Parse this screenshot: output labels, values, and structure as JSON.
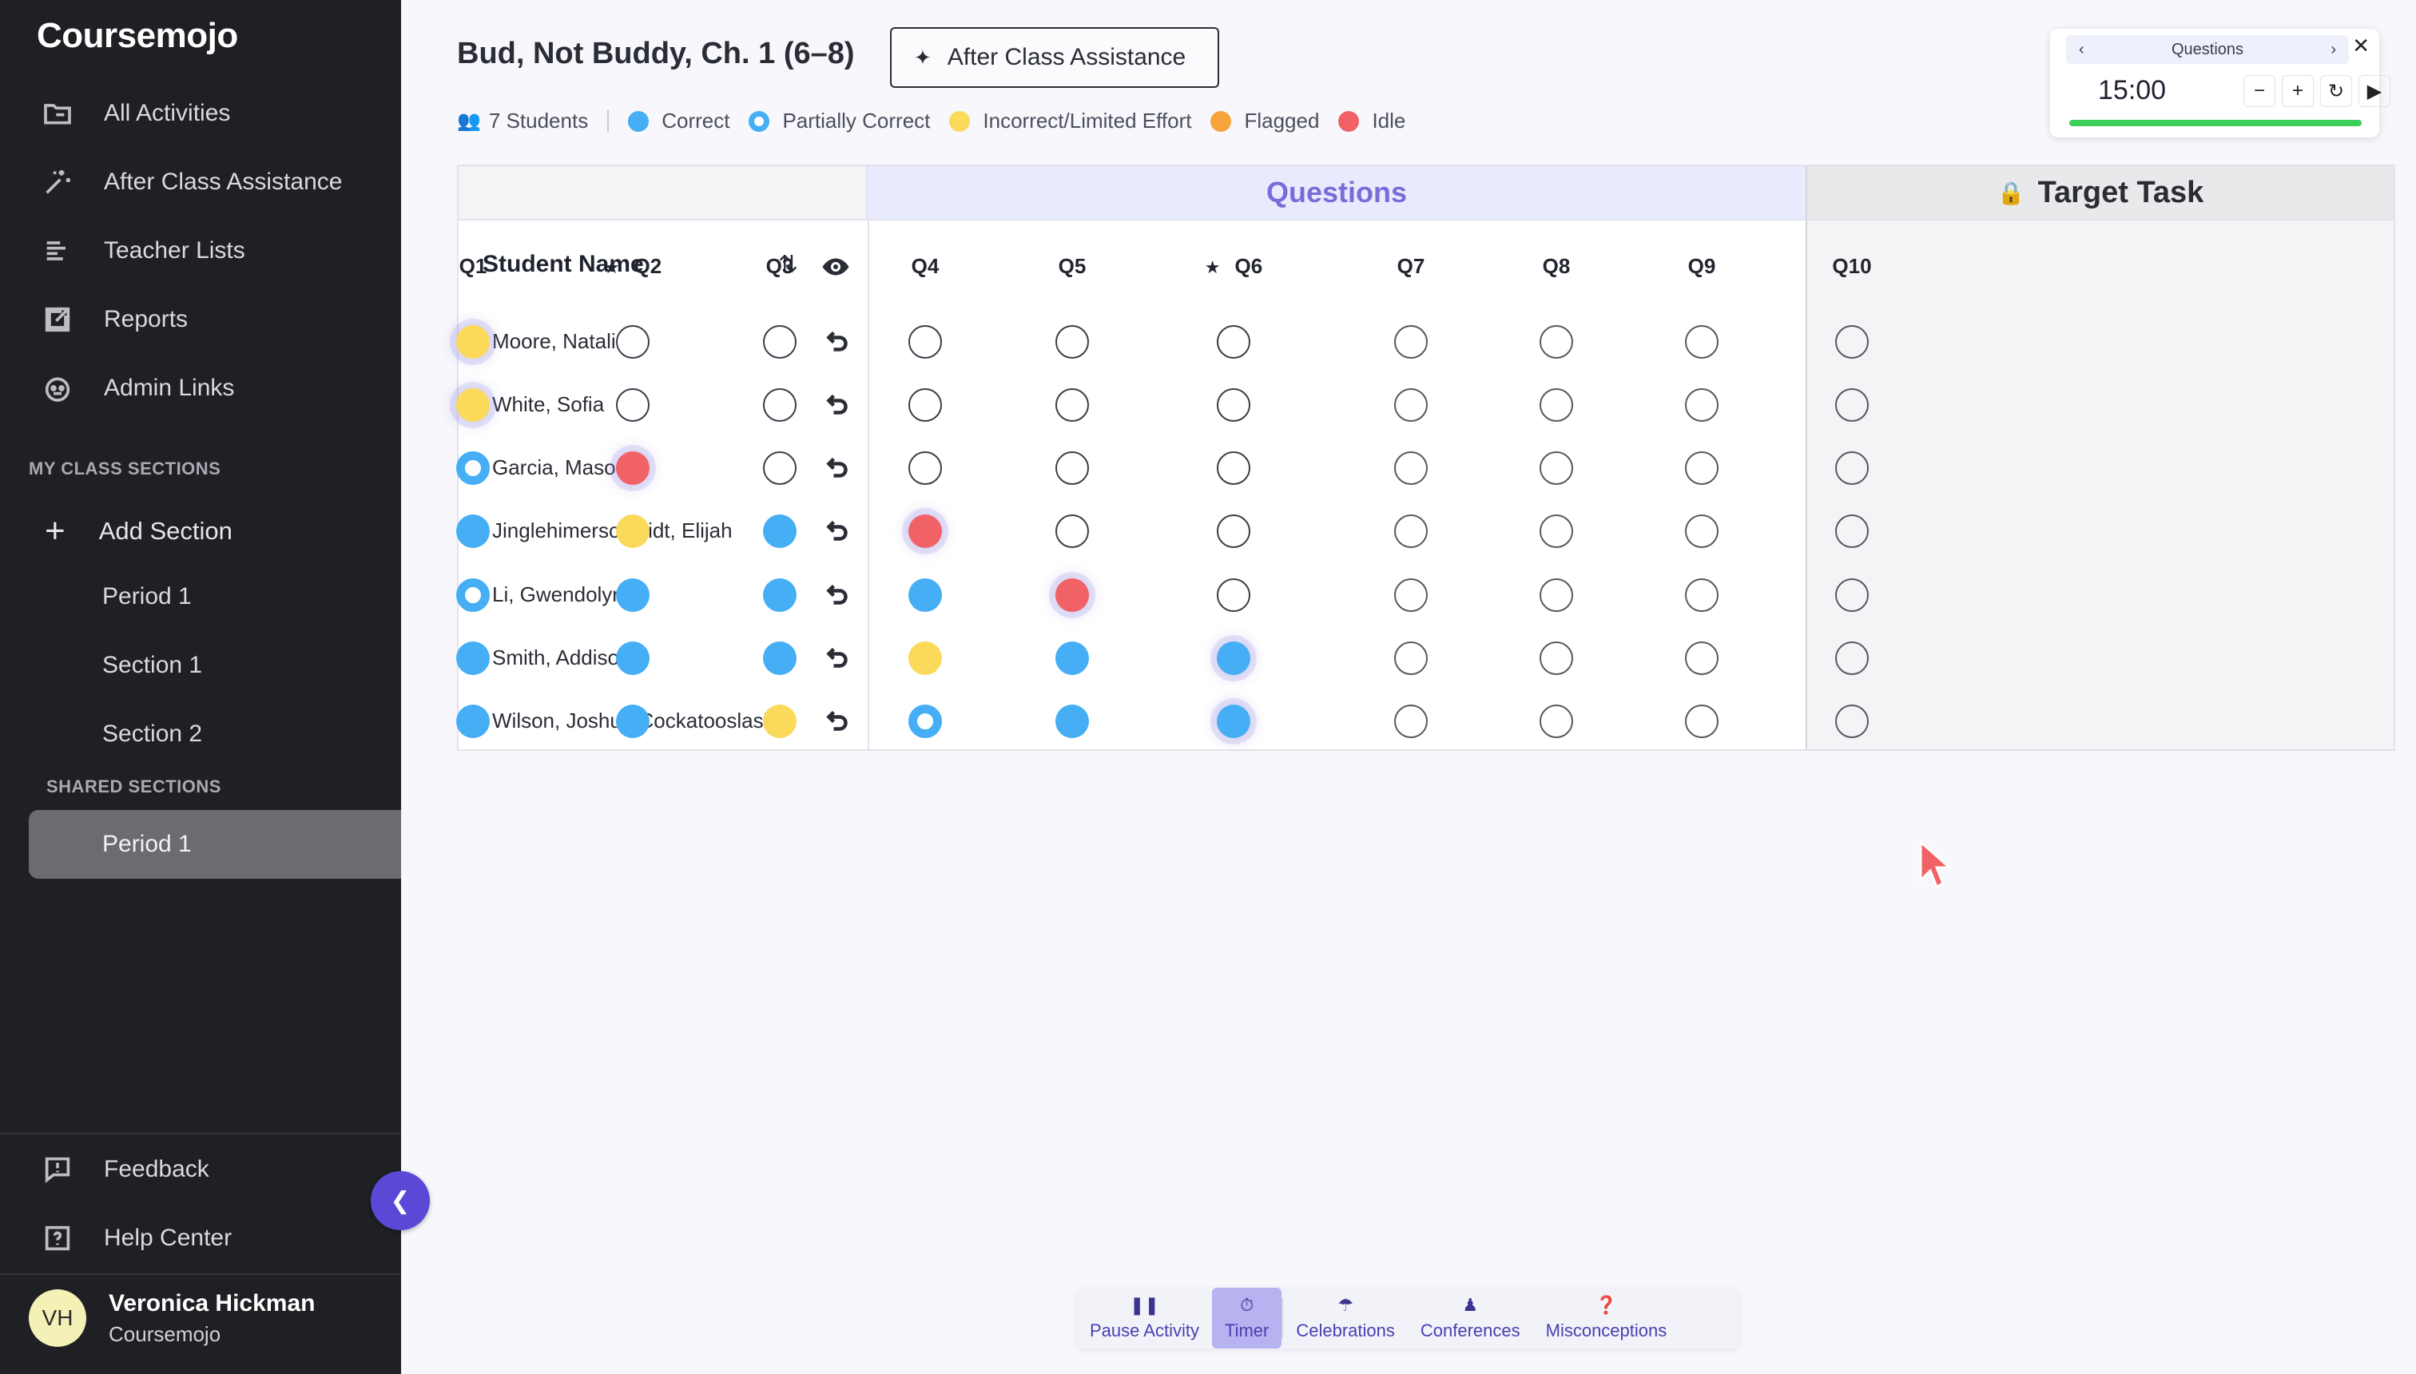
{
  "sidebar": {
    "brand": "Coursemojo",
    "nav": [
      {
        "label": "All Activities",
        "icon": "folder-icon"
      },
      {
        "label": "After Class Assistance",
        "icon": "sparkle-icon"
      },
      {
        "label": "Teacher Lists",
        "icon": "list-icon"
      },
      {
        "label": "Reports",
        "icon": "external-link-icon"
      },
      {
        "label": "Admin Links",
        "icon": "robot-icon"
      }
    ],
    "my_sections_heading": "MY CLASS SECTIONS",
    "add_section_label": "Add Section",
    "my_sections": [
      "Period 1",
      "Section 1",
      "Section 2"
    ],
    "shared_heading": "SHARED SECTIONS",
    "shared_sections": [
      "Period 1"
    ],
    "footer": [
      {
        "label": "Feedback",
        "icon": "feedback-icon"
      },
      {
        "label": "Help Center",
        "icon": "help-icon"
      }
    ],
    "user": {
      "initials": "VH",
      "name": "Veronica Hickman",
      "org": "Coursemojo"
    }
  },
  "header": {
    "title": "Bud, Not Buddy, Ch. 1 (6–8)",
    "assist_button": "After Class Assistance",
    "students_count": "7 Students",
    "legend": [
      {
        "label": "Correct",
        "color": "#45aef5",
        "kind": "correct"
      },
      {
        "label": "Partially Correct",
        "color": "#45aef5",
        "kind": "partial"
      },
      {
        "label": "Incorrect/Limited Effort",
        "color": "#fbd95a",
        "kind": "incorrect"
      },
      {
        "label": "Flagged",
        "color": "#f7a33b",
        "kind": "flagged"
      },
      {
        "label": "Idle",
        "color": "#f16266",
        "kind": "idle"
      }
    ]
  },
  "timer": {
    "label": "Questions",
    "time": "15:00",
    "progress": 1.0
  },
  "grid": {
    "questions_label": "Questions",
    "target_label": "Target Task",
    "student_name_header": "Student Name",
    "columns": [
      {
        "label": "Q1",
        "starred": false
      },
      {
        "label": "Q2",
        "starred": true
      },
      {
        "label": "Q3",
        "starred": false
      },
      {
        "label": "Q4",
        "starred": false
      },
      {
        "label": "Q5",
        "starred": false
      },
      {
        "label": "Q6",
        "starred": true
      },
      {
        "label": "Q7",
        "starred": false
      },
      {
        "label": "Q8",
        "starred": false
      },
      {
        "label": "Q9",
        "starred": false
      },
      {
        "label": "Q10",
        "starred": false
      }
    ],
    "rows": [
      {
        "name": "Moore, Natalie",
        "cells": [
          "incorrect*",
          "empty",
          "empty",
          "empty",
          "empty",
          "empty",
          "empty",
          "empty",
          "empty",
          "empty"
        ]
      },
      {
        "name": "White, Sofia",
        "cells": [
          "incorrect*",
          "empty",
          "empty",
          "empty",
          "empty",
          "empty",
          "empty",
          "empty",
          "empty",
          "empty"
        ]
      },
      {
        "name": "Garcia, Mason",
        "cells": [
          "partial",
          "idle*",
          "empty",
          "empty",
          "empty",
          "empty",
          "empty",
          "empty",
          "empty",
          "empty"
        ]
      },
      {
        "name": "Jinglehimerschmidt, Elijah",
        "cells": [
          "correct",
          "incorrect",
          "correct",
          "idle*",
          "empty",
          "empty",
          "empty",
          "empty",
          "empty",
          "empty"
        ]
      },
      {
        "name": "Li, Gwendolyn",
        "cells": [
          "partial",
          "correct",
          "correct",
          "correct",
          "idle*",
          "empty",
          "empty",
          "empty",
          "empty",
          "empty"
        ]
      },
      {
        "name": "Smith, Addison",
        "cells": [
          "correct",
          "correct",
          "correct",
          "incorrect",
          "correct",
          "correct*",
          "empty",
          "empty",
          "empty",
          "empty"
        ]
      },
      {
        "name": "Wilson, Joshua Cockatooslash",
        "cells": [
          "correct",
          "correct",
          "incorrect",
          "partial",
          "correct",
          "correct*",
          "empty",
          "empty",
          "empty",
          "empty"
        ]
      }
    ]
  },
  "toolbar": [
    {
      "label": "Pause Activity",
      "icon": "pause-icon",
      "active": false
    },
    {
      "label": "Timer",
      "icon": "stopwatch-icon",
      "active": true
    },
    {
      "label": "Celebrations",
      "icon": "celebration-icon",
      "active": false
    },
    {
      "label": "Conferences",
      "icon": "conference-icon",
      "active": false
    },
    {
      "label": "Misconceptions",
      "icon": "misconception-icon",
      "active": false
    }
  ]
}
